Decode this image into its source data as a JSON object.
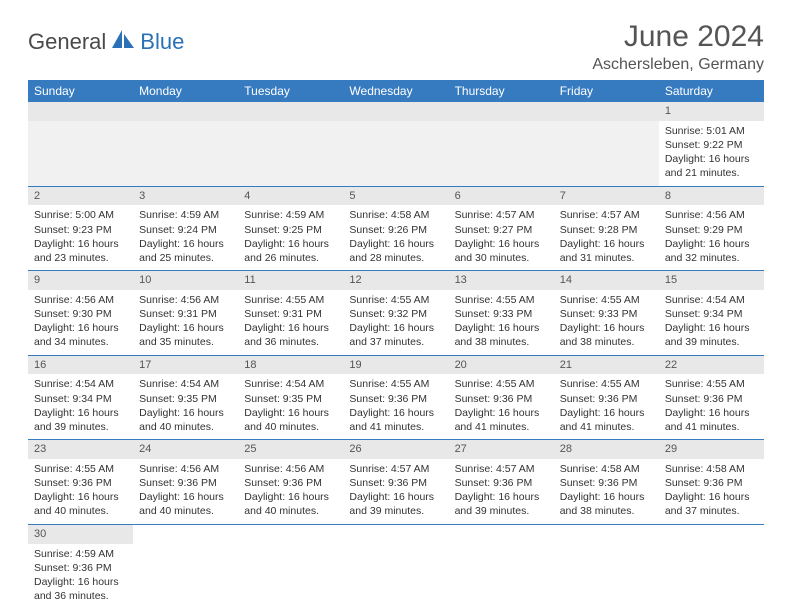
{
  "logo": {
    "text1": "General",
    "text2": "Blue"
  },
  "title": "June 2024",
  "location": "Aschersleben, Germany",
  "colors": {
    "header_bg": "#367bc0",
    "header_text": "#ffffff",
    "daynum_bg": "#e8e8e8",
    "border": "#367bc0",
    "title_color": "#555555",
    "logo_blue": "#2b71b8",
    "body_text": "#333333"
  },
  "weekdays": [
    "Sunday",
    "Monday",
    "Tuesday",
    "Wednesday",
    "Thursday",
    "Friday",
    "Saturday"
  ],
  "days": {
    "1": {
      "sr": "5:01 AM",
      "ss": "9:22 PM",
      "dlh": "16",
      "dlm": "21"
    },
    "2": {
      "sr": "5:00 AM",
      "ss": "9:23 PM",
      "dlh": "16",
      "dlm": "23"
    },
    "3": {
      "sr": "4:59 AM",
      "ss": "9:24 PM",
      "dlh": "16",
      "dlm": "25"
    },
    "4": {
      "sr": "4:59 AM",
      "ss": "9:25 PM",
      "dlh": "16",
      "dlm": "26"
    },
    "5": {
      "sr": "4:58 AM",
      "ss": "9:26 PM",
      "dlh": "16",
      "dlm": "28"
    },
    "6": {
      "sr": "4:57 AM",
      "ss": "9:27 PM",
      "dlh": "16",
      "dlm": "30"
    },
    "7": {
      "sr": "4:57 AM",
      "ss": "9:28 PM",
      "dlh": "16",
      "dlm": "31"
    },
    "8": {
      "sr": "4:56 AM",
      "ss": "9:29 PM",
      "dlh": "16",
      "dlm": "32"
    },
    "9": {
      "sr": "4:56 AM",
      "ss": "9:30 PM",
      "dlh": "16",
      "dlm": "34"
    },
    "10": {
      "sr": "4:56 AM",
      "ss": "9:31 PM",
      "dlh": "16",
      "dlm": "35"
    },
    "11": {
      "sr": "4:55 AM",
      "ss": "9:31 PM",
      "dlh": "16",
      "dlm": "36"
    },
    "12": {
      "sr": "4:55 AM",
      "ss": "9:32 PM",
      "dlh": "16",
      "dlm": "37"
    },
    "13": {
      "sr": "4:55 AM",
      "ss": "9:33 PM",
      "dlh": "16",
      "dlm": "38"
    },
    "14": {
      "sr": "4:55 AM",
      "ss": "9:33 PM",
      "dlh": "16",
      "dlm": "38"
    },
    "15": {
      "sr": "4:54 AM",
      "ss": "9:34 PM",
      "dlh": "16",
      "dlm": "39"
    },
    "16": {
      "sr": "4:54 AM",
      "ss": "9:34 PM",
      "dlh": "16",
      "dlm": "39"
    },
    "17": {
      "sr": "4:54 AM",
      "ss": "9:35 PM",
      "dlh": "16",
      "dlm": "40"
    },
    "18": {
      "sr": "4:54 AM",
      "ss": "9:35 PM",
      "dlh": "16",
      "dlm": "40"
    },
    "19": {
      "sr": "4:55 AM",
      "ss": "9:36 PM",
      "dlh": "16",
      "dlm": "41"
    },
    "20": {
      "sr": "4:55 AM",
      "ss": "9:36 PM",
      "dlh": "16",
      "dlm": "41"
    },
    "21": {
      "sr": "4:55 AM",
      "ss": "9:36 PM",
      "dlh": "16",
      "dlm": "41"
    },
    "22": {
      "sr": "4:55 AM",
      "ss": "9:36 PM",
      "dlh": "16",
      "dlm": "41"
    },
    "23": {
      "sr": "4:55 AM",
      "ss": "9:36 PM",
      "dlh": "16",
      "dlm": "40"
    },
    "24": {
      "sr": "4:56 AM",
      "ss": "9:36 PM",
      "dlh": "16",
      "dlm": "40"
    },
    "25": {
      "sr": "4:56 AM",
      "ss": "9:36 PM",
      "dlh": "16",
      "dlm": "40"
    },
    "26": {
      "sr": "4:57 AM",
      "ss": "9:36 PM",
      "dlh": "16",
      "dlm": "39"
    },
    "27": {
      "sr": "4:57 AM",
      "ss": "9:36 PM",
      "dlh": "16",
      "dlm": "39"
    },
    "28": {
      "sr": "4:58 AM",
      "ss": "9:36 PM",
      "dlh": "16",
      "dlm": "38"
    },
    "29": {
      "sr": "4:58 AM",
      "ss": "9:36 PM",
      "dlh": "16",
      "dlm": "37"
    },
    "30": {
      "sr": "4:59 AM",
      "ss": "9:36 PM",
      "dlh": "16",
      "dlm": "36"
    }
  },
  "labels": {
    "sunrise": "Sunrise: ",
    "sunset": "Sunset: ",
    "daylight1": "Daylight: ",
    "daylight2": " hours and ",
    "daylight3": " minutes."
  },
  "grid": [
    [
      null,
      null,
      null,
      null,
      null,
      null,
      "1"
    ],
    [
      "2",
      "3",
      "4",
      "5",
      "6",
      "7",
      "8"
    ],
    [
      "9",
      "10",
      "11",
      "12",
      "13",
      "14",
      "15"
    ],
    [
      "16",
      "17",
      "18",
      "19",
      "20",
      "21",
      "22"
    ],
    [
      "23",
      "24",
      "25",
      "26",
      "27",
      "28",
      "29"
    ],
    [
      "30",
      null,
      null,
      null,
      null,
      null,
      null
    ]
  ]
}
